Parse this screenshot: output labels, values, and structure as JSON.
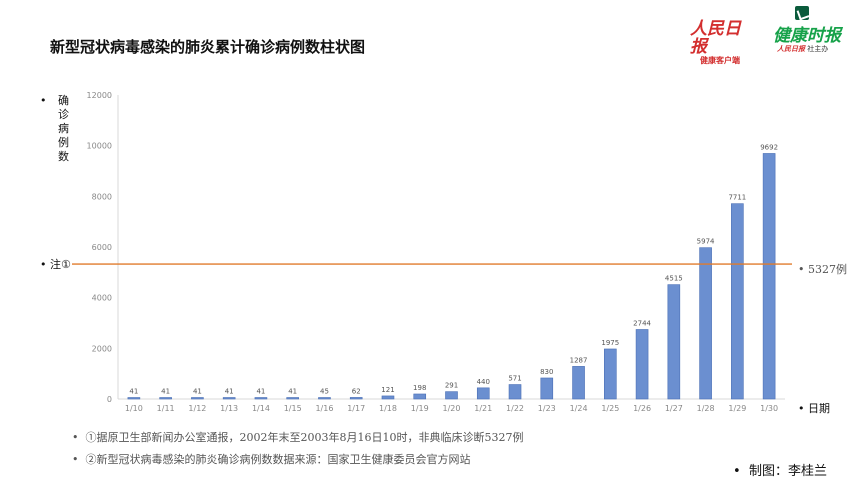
{
  "header": {
    "logo_renmin": "人民日报",
    "logo_renmin_sub": "健康客户端",
    "logo_jiankang": "健康时报",
    "logo_jiankang_sub1": "人民日报",
    "logo_jiankang_sub2": "社主办"
  },
  "annotation": {
    "left_bullet": "•",
    "left_label": "注①",
    "right_bullet": "•",
    "right_label": "5327例"
  },
  "footnotes": [
    "①据原卫生部新闻办公室通报，2002年末至2003年8月16日10时，非典临床诊断5327例",
    "②新型冠状病毒感染的肺炎确诊病例数数据来源：国家卫生健康委员会官方网站"
  ],
  "credit": "制图：李桂兰",
  "colors": {
    "bar": "#6b8fd0",
    "bar_edge": "#4a6fb5",
    "reference_line": "#e07b2c",
    "axis": "#d9d9d9"
  },
  "chart_data": {
    "type": "bar",
    "title": "新型冠状病毒感染的肺炎累计确诊病例数柱状图",
    "xlabel": "日期",
    "ylabel": "确诊病例数",
    "categories": [
      "1/10",
      "1/11",
      "1/12",
      "1/13",
      "1/14",
      "1/15",
      "1/16",
      "1/17",
      "1/18",
      "1/19",
      "1/20",
      "1/21",
      "1/22",
      "1/23",
      "1/24",
      "1/25",
      "1/26",
      "1/27",
      "1/28",
      "1/29",
      "1/30"
    ],
    "values": [
      41,
      41,
      41,
      41,
      41,
      41,
      45,
      62,
      121,
      198,
      291,
      440,
      571,
      830,
      1287,
      1975,
      2744,
      4515,
      5974,
      7711,
      9692
    ],
    "yticks": [
      "0",
      "2000",
      "4000",
      "6000",
      "8000",
      "10000",
      "12000"
    ],
    "ylim": [
      0,
      12000
    ],
    "reference_line": {
      "value": 5327,
      "label": "5327例"
    },
    "grid": false,
    "legend": "none"
  }
}
